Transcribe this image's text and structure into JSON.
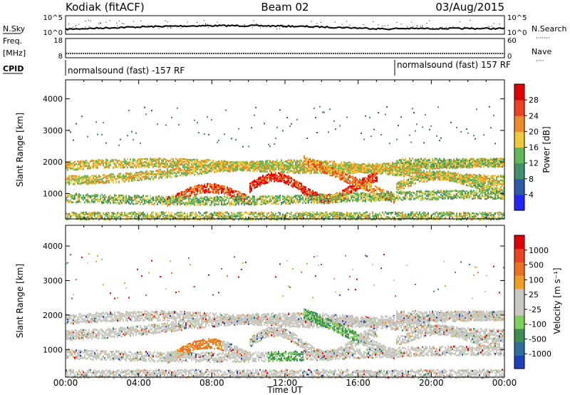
{
  "header": {
    "station": "Kodiak (fitACF)",
    "beam": "Beam 02",
    "date": "03/Aug/2015"
  },
  "top_panels": {
    "nsky_label": "N.Sky",
    "nsearch_label": "N.Search",
    "nsearch_dots": "·······",
    "freq_label_1": "Freq.",
    "freq_label_2": "[MHz]",
    "nave_label": "Nave",
    "nave_dots": "····",
    "cpid_label": "CPID",
    "left_ticks": [
      "10^5",
      "10^0"
    ],
    "right_ticks": [
      "10^5",
      "10^0"
    ],
    "freq_ticks": [
      "18",
      "8"
    ],
    "nave_ticks": [
      "60",
      "0"
    ]
  },
  "cpid": {
    "segment_1": "normalsound (fast) -157 RF",
    "segment_2": "normalsound (fast) 157 RF",
    "switch_time_hours": 18.0
  },
  "chart_data": [
    {
      "type": "heatmap",
      "name": "power",
      "ylabel": "Slant Range [km]",
      "xlabel": "",
      "ylim": [
        200,
        4600
      ],
      "yticks": [
        1000,
        2000,
        3000,
        4000
      ],
      "colorbar": {
        "label": "Power [dB]",
        "ticks": [
          4,
          8,
          12,
          16,
          20,
          24,
          28
        ],
        "colors": [
          "#1f26ff",
          "#2f5aa8",
          "#3f8f6a",
          "#5fb85a",
          "#f0c93a",
          "#f08a24",
          "#ee4020",
          "#e10000"
        ]
      }
    },
    {
      "type": "heatmap",
      "name": "velocity",
      "ylabel": "Slant Range [km]",
      "xlabel": "Time UT",
      "ylim": [
        200,
        4600
      ],
      "yticks": [
        1000,
        2000,
        3000,
        4000
      ],
      "xticks": [
        "00:00",
        "04:00",
        "08:00",
        "12:00",
        "16:00",
        "20:00",
        "00:00"
      ],
      "colorbar": {
        "label": "Velocity [m s⁻¹]",
        "ticks": [
          "1000",
          "500",
          "100",
          "25",
          "-25",
          "-100",
          "-500",
          "-1000"
        ],
        "colors": [
          "#1f3fbf",
          "#2e6fa0",
          "#3b8f52",
          "#7fd05a",
          "#c8c8c0",
          "#c8c8c0",
          "#f0a020",
          "#f07020",
          "#f04020",
          "#e00000"
        ]
      }
    }
  ]
}
